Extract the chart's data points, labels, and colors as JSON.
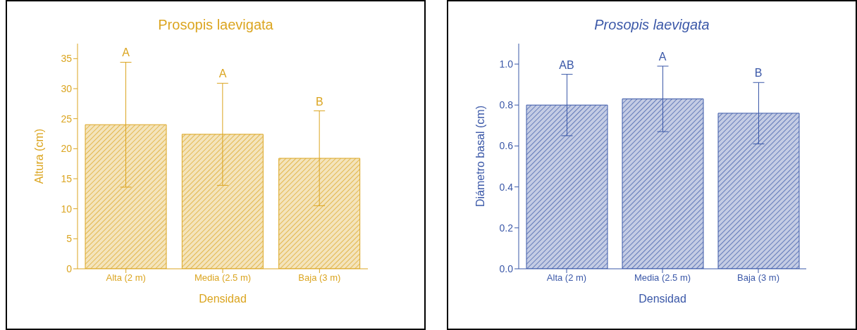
{
  "chart_data": [
    {
      "type": "bar",
      "title": "Prosopis laevigata",
      "xlabel": "Densidad",
      "ylabel": "Altura (cm)",
      "categories": [
        "Alta (2 m)",
        "Media (2.5 m)",
        "Baja (3 m)"
      ],
      "values": [
        24.0,
        22.4,
        18.4
      ],
      "errors": [
        10.4,
        8.5,
        7.9
      ],
      "color": "#dba520",
      "ylim": [
        0,
        37.5
      ],
      "yticks": [
        0,
        5,
        10,
        15,
        20,
        25,
        30,
        35
      ],
      "grid": false,
      "legend": false,
      "annotations": [
        "A",
        "A",
        "B"
      ]
    },
    {
      "type": "bar",
      "title": "Prosopis laevigata",
      "xlabel": "Densidad",
      "ylabel": "Diámetro basal (cm)",
      "categories": [
        "Alta (2 m)",
        "Media (2.5 m)",
        "Baja (3 m)"
      ],
      "values": [
        0.8,
        0.83,
        0.76
      ],
      "errors": [
        0.15,
        0.16,
        0.15
      ],
      "color": "#3b58a8",
      "ylim": [
        0,
        1.1
      ],
      "yticks": [
        {
          "value": 0,
          "label": "0.0"
        },
        0.2,
        0.4,
        0.6,
        0.8,
        {
          "value": 1,
          "label": "1.0"
        }
      ],
      "grid": false,
      "legend": false,
      "annotations": [
        "AB",
        "A",
        "B"
      ]
    }
  ]
}
